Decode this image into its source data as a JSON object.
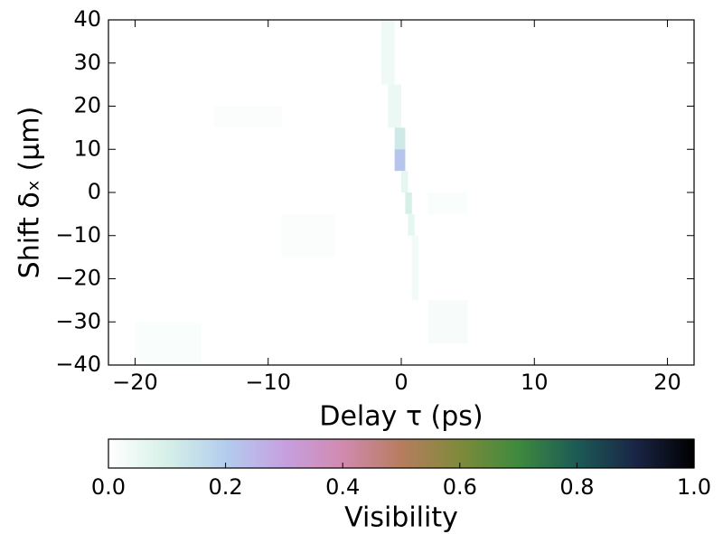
{
  "chart_data": {
    "type": "heatmap",
    "xlabel": "Delay τ (ps)",
    "ylabel": "Shift δₓ (μm)",
    "xlim": [
      -22,
      22
    ],
    "ylim": [
      -40,
      40
    ],
    "xticks": [
      {
        "value": -20,
        "label": "−20"
      },
      {
        "value": -10,
        "label": "−10"
      },
      0,
      10,
      20
    ],
    "yticks": [
      {
        "value": -40,
        "label": "−40"
      },
      {
        "value": -30,
        "label": "−30"
      },
      {
        "value": -20,
        "label": "−20"
      },
      {
        "value": -10,
        "label": "−10"
      },
      0,
      10,
      20,
      30,
      40
    ],
    "cells": [
      {
        "x0": -20,
        "x1": -15,
        "y0": -40,
        "y1": -30,
        "value": 0.015
      },
      {
        "x0": 2,
        "x1": 5,
        "y0": -35,
        "y1": -25,
        "value": 0.02
      },
      {
        "x0": 2,
        "x1": 5,
        "y0": -5,
        "y1": 0,
        "value": 0.015
      },
      {
        "x0": -9,
        "x1": -5,
        "y0": -15,
        "y1": -5,
        "value": 0.012
      },
      {
        "x0": -14,
        "x1": -9,
        "y0": 15,
        "y1": 20,
        "value": 0.012
      },
      {
        "x0": -1.5,
        "x1": -0.5,
        "y0": 25,
        "y1": 40,
        "value": 0.04
      },
      {
        "x0": -1,
        "x1": 0,
        "y0": 15,
        "y1": 25,
        "value": 0.05
      },
      {
        "x0": -0.5,
        "x1": 0.3,
        "y0": 10,
        "y1": 15,
        "value": 0.12
      },
      {
        "x0": -0.5,
        "x1": 0.3,
        "y0": 5,
        "y1": 10,
        "value": 0.22
      },
      {
        "x0": 0,
        "x1": 0.5,
        "y0": 0,
        "y1": 5,
        "value": 0.06
      },
      {
        "x0": 0.3,
        "x1": 0.8,
        "y0": -5,
        "y1": 0,
        "value": 0.1
      },
      {
        "x0": 0.5,
        "x1": 1,
        "y0": -10,
        "y1": -5,
        "value": 0.06
      },
      {
        "x0": 0.8,
        "x1": 1.3,
        "y0": -25,
        "y1": -10,
        "value": 0.03
      }
    ],
    "colormap": [
      "#ffffff",
      "#d6f0e8",
      "#b3cdee",
      "#c6a0e0",
      "#d18ab0",
      "#b67d5e",
      "#7f8a3a",
      "#3e8a3e",
      "#1c5a56",
      "#1a2546",
      "#000000"
    ],
    "colorbar": {
      "label": "Visibility",
      "lim": [
        0,
        1
      ],
      "ticks": [
        {
          "value": 0,
          "label": "0.0"
        },
        {
          "value": 0.2,
          "label": "0.2"
        },
        {
          "value": 0.4,
          "label": "0.4"
        },
        {
          "value": 0.6,
          "label": "0.6"
        },
        {
          "value": 0.8,
          "label": "0.8"
        },
        {
          "value": 1,
          "label": "1.0"
        }
      ]
    }
  }
}
